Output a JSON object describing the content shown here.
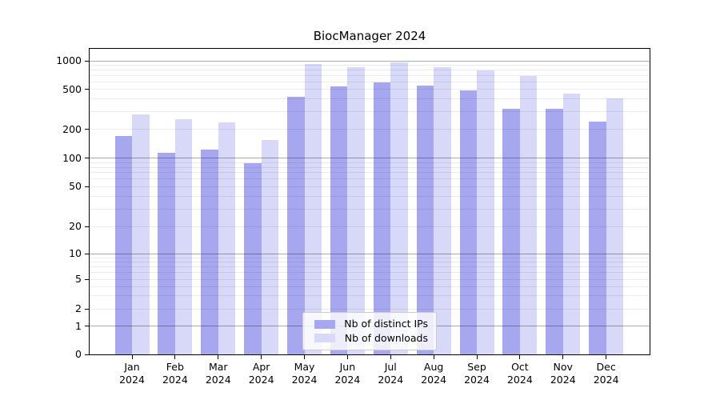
{
  "chart_data": {
    "type": "bar",
    "title": "BiocManager 2024",
    "categories": [
      "Jan 2024",
      "Feb 2024",
      "Mar 2024",
      "Apr 2024",
      "May 2024",
      "Jun 2024",
      "Jul 2024",
      "Aug 2024",
      "Sep 2024",
      "Oct 2024",
      "Nov 2024",
      "Dec 2024"
    ],
    "series": [
      {
        "name": "Nb of distinct IPs",
        "color": "#a7a7f0",
        "values": [
          170,
          114,
          122,
          88,
          420,
          540,
          590,
          550,
          490,
          320,
          320,
          240
        ]
      },
      {
        "name": "Nb of downloads",
        "color": "#d8d8f8",
        "values": [
          280,
          252,
          233,
          156,
          925,
          860,
          970,
          860,
          790,
          695,
          450,
          405
        ]
      }
    ],
    "y_ticks": [
      0,
      1,
      2,
      5,
      10,
      20,
      50,
      100,
      200,
      500,
      1000
    ],
    "y_scale": "log-like (linear below 1)",
    "ylim": [
      0,
      1300
    ],
    "xlabel": "",
    "ylabel": "",
    "grid": true,
    "legend_position": "lower center"
  }
}
